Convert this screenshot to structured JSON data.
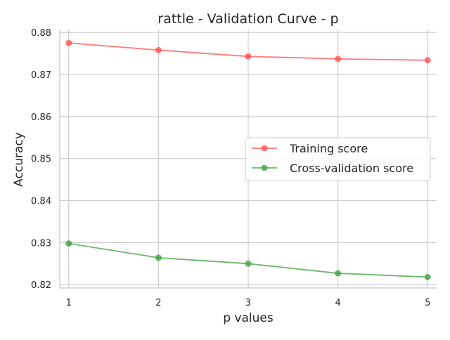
{
  "chart_data": {
    "type": "line",
    "title": "rattle - Validation Curve - p",
    "xlabel": "p values",
    "ylabel": "Accuracy",
    "x": [
      1,
      2,
      3,
      4,
      5
    ],
    "x_tick_labels": [
      "1",
      "2",
      "3",
      "4",
      "5"
    ],
    "ylim": [
      0.8192,
      0.8807
    ],
    "y_ticks": [
      0.82,
      0.83,
      0.84,
      0.85,
      0.86,
      0.87,
      0.88
    ],
    "y_tick_labels": [
      "0.82",
      "0.83",
      "0.84",
      "0.85",
      "0.86",
      "0.87",
      "0.88"
    ],
    "grid": true,
    "legend_position": "center-right",
    "series": [
      {
        "name": "Training score",
        "color": "#ff4d4d",
        "values": [
          0.8775,
          0.8758,
          0.8743,
          0.8737,
          0.8734
        ]
      },
      {
        "name": "Cross-validation score",
        "color": "#3a9e3a",
        "values": [
          0.8298,
          0.8264,
          0.825,
          0.8227,
          0.8218
        ]
      }
    ]
  }
}
